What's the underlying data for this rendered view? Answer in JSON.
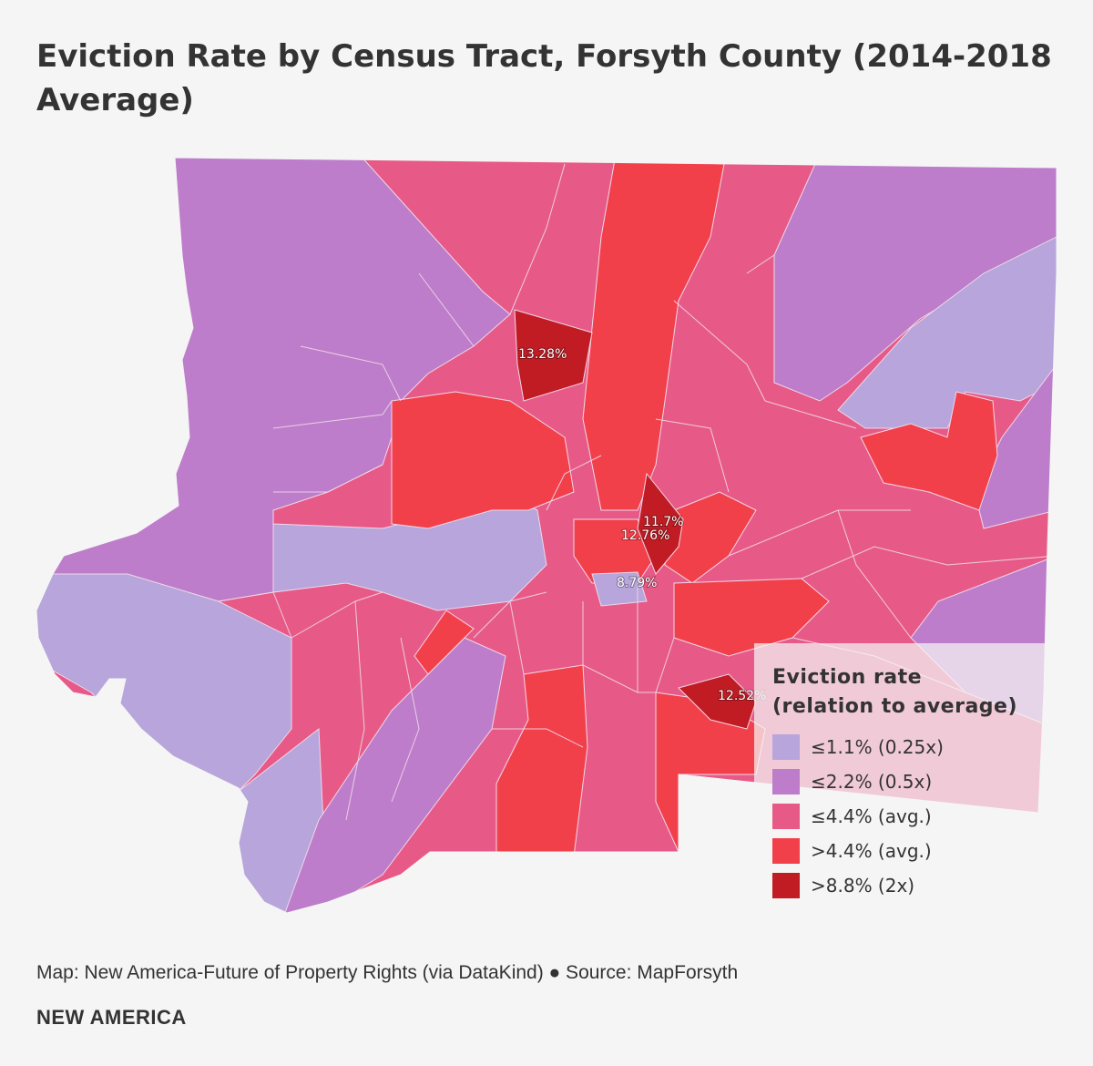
{
  "title": "Eviction Rate by Census Tract, Forsyth County (2014-2018 Average)",
  "legend": {
    "title_line1": "Eviction rate",
    "title_line2": "(relation to average)",
    "items": [
      {
        "label": "≤1.1% (0.25x)",
        "color": "#b7a5db"
      },
      {
        "label": "≤2.2% (0.5x)",
        "color": "#bd7dca"
      },
      {
        "label": "≤4.4% (avg.)",
        "color": "#e75a88"
      },
      {
        "label": ">4.4% (avg.)",
        "color": "#f2404b"
      },
      {
        "label": ">8.8% (2x)",
        "color": "#c11c24"
      }
    ]
  },
  "map": {
    "labels": [
      {
        "text": "13.28%"
      },
      {
        "text": "11.7%"
      },
      {
        "text": "12.76%"
      },
      {
        "text": "8.79%"
      },
      {
        "text": "12.52%"
      }
    ]
  },
  "footer": {
    "source": "Map: New America-Future of Property Rights (via DataKind) ● Source: MapForsyth",
    "brand": "NEW AMERICA"
  }
}
